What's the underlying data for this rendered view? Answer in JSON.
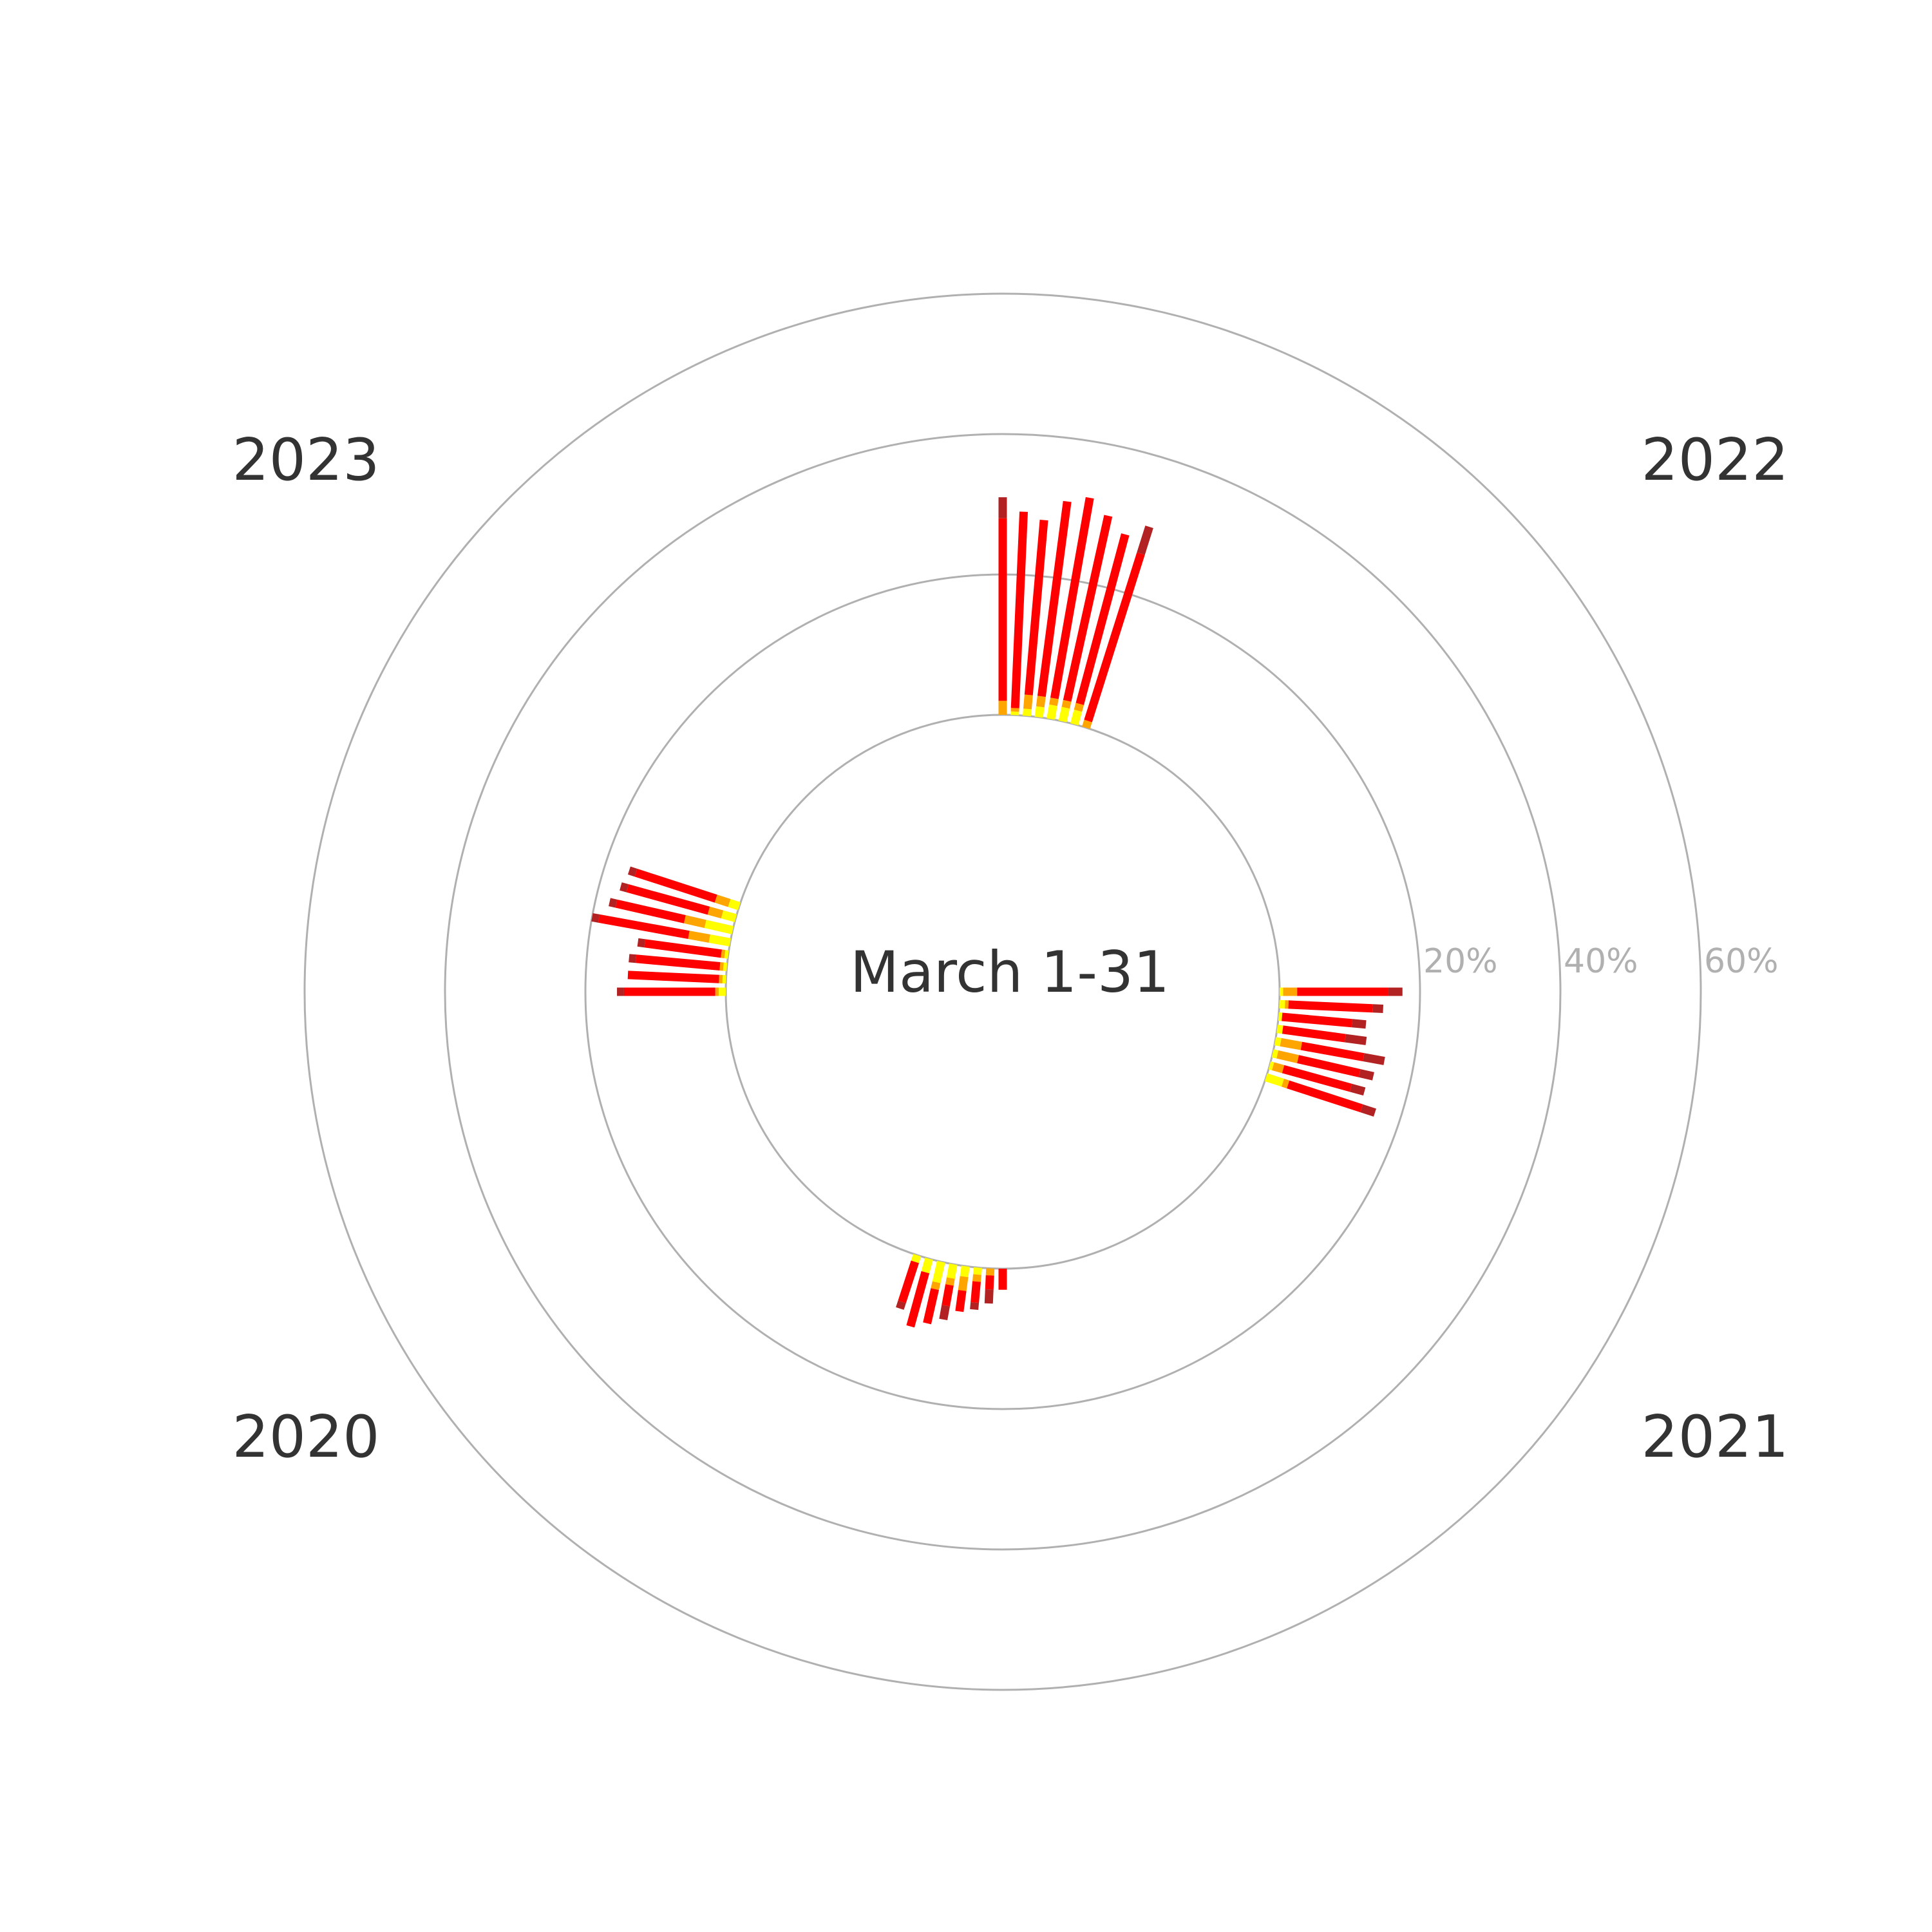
{
  "chart_data": {
    "type": "radial-stacked-bar",
    "title": "March 1-31",
    "radial_ticks": [
      "20%",
      "40%",
      "60%"
    ],
    "radial_tick_values": [
      20,
      40,
      60
    ],
    "radial_max": 60,
    "colors": {
      "seg1": "#ffff00",
      "seg2": "#ffa500",
      "seg3": "#ff0000",
      "seg4": "#b22222",
      "ring": "#b0b0b0"
    },
    "groups": [
      {
        "year": "2022",
        "bars": [
          [
            0,
            2,
            26,
            3
          ],
          [
            0.5,
            0.5,
            28,
            0
          ],
          [
            1,
            2,
            25,
            0
          ],
          [
            1.5,
            1.5,
            28,
            0
          ],
          [
            2,
            1,
            29,
            0
          ],
          [
            2,
            1,
            27,
            0
          ],
          [
            2,
            1,
            25,
            0
          ],
          [
            0,
            1,
            25,
            4
          ]
        ]
      },
      {
        "year": "2021",
        "bars": [
          [
            0.5,
            2,
            13,
            2
          ],
          [
            0.8,
            0.5,
            12,
            1.5
          ],
          [
            0.5,
            0,
            10,
            2
          ],
          [
            0.8,
            0,
            9,
            3
          ],
          [
            0.8,
            3,
            9,
            3
          ],
          [
            0.7,
            3,
            9,
            2
          ],
          [
            0.5,
            1.5,
            10,
            2
          ],
          [
            2.5,
            0.8,
            11,
            2
          ]
        ]
      },
      {
        "year": "2020",
        "bars": [
          [
            0,
            0,
            3,
            0
          ],
          [
            0,
            1,
            2,
            2
          ],
          [
            1,
            1,
            3,
            1
          ],
          [
            1.5,
            2,
            3,
            0
          ],
          [
            2,
            1,
            3,
            2
          ],
          [
            3,
            1,
            5,
            0
          ],
          [
            2,
            0,
            8,
            0
          ],
          [
            1,
            0,
            6,
            1
          ]
        ]
      },
      {
        "year": "2023",
        "bars": [
          [
            1,
            0.5,
            13,
            1
          ],
          [
            0.5,
            0.5,
            13,
            0
          ],
          [
            0.5,
            0.5,
            12,
            1
          ],
          [
            0.5,
            0.5,
            11,
            1
          ],
          [
            3,
            3,
            13,
            1
          ],
          [
            4,
            3,
            10,
            1
          ],
          [
            2,
            2,
            12,
            1
          ],
          [
            1.5,
            2,
            12,
            1
          ]
        ]
      }
    ]
  }
}
